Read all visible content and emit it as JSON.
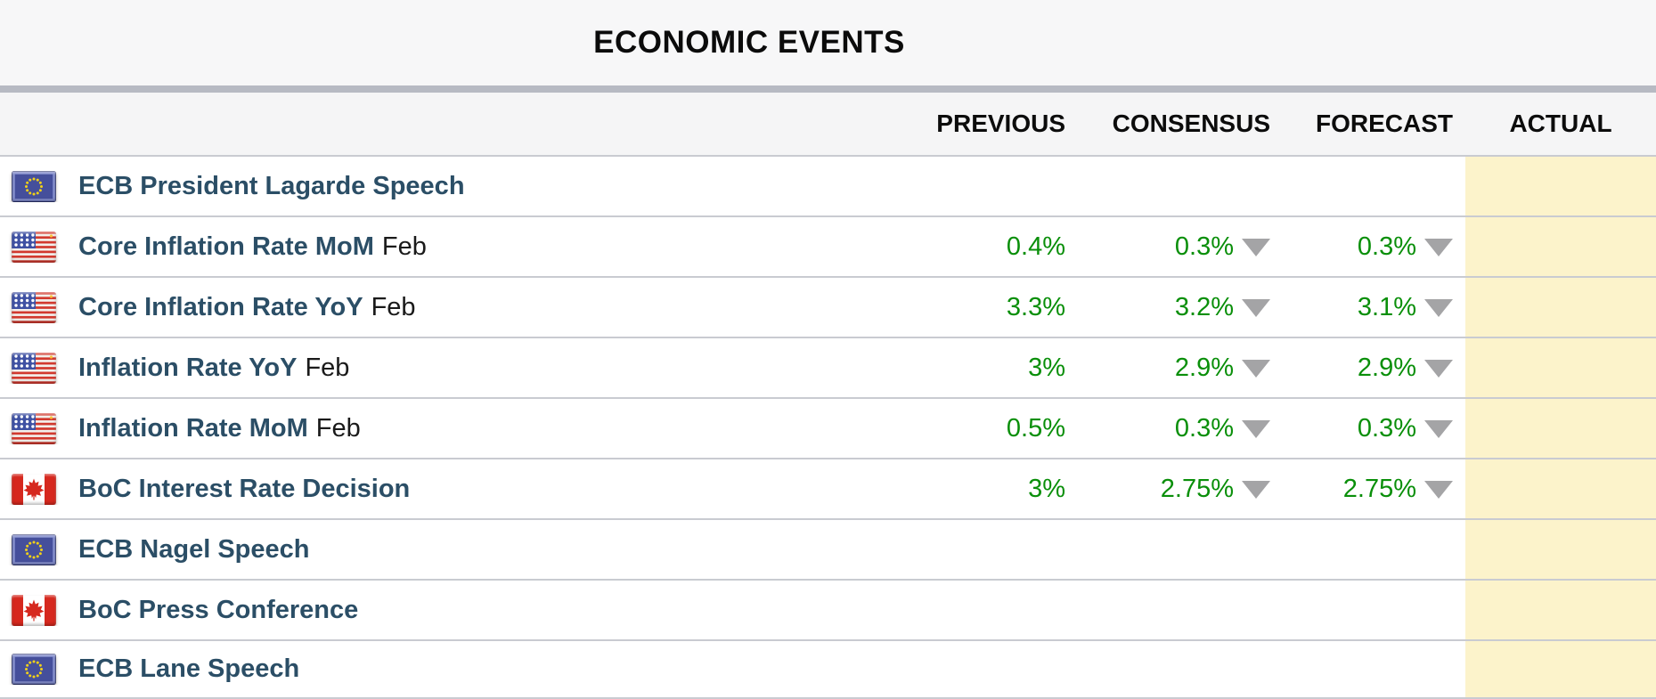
{
  "title": "ECONOMIC EVENTS",
  "columns": [
    "PREVIOUS",
    "CONSENSUS",
    "FORECAST",
    "ACTUAL"
  ],
  "colors": {
    "value_green": "#0a8f0a",
    "link_navy": "#2b4e66",
    "actual_column_yellow": "#fcf3cb",
    "divider_gray": "#b7bac3",
    "row_border_gray": "#c9cbd1"
  },
  "rows": [
    {
      "flag": "eu",
      "event": "ECB President Lagarde Speech",
      "suffix": "",
      "previous": "",
      "consensus": "",
      "consensus_trend": "",
      "forecast": "",
      "forecast_trend": "",
      "actual": ""
    },
    {
      "flag": "us",
      "event": "Core Inflation Rate MoM",
      "suffix": "Feb",
      "previous": "0.4%",
      "consensus": "0.3%",
      "consensus_trend": "down",
      "forecast": "0.3%",
      "forecast_trend": "down",
      "actual": ""
    },
    {
      "flag": "us",
      "event": "Core Inflation Rate YoY",
      "suffix": "Feb",
      "previous": "3.3%",
      "consensus": "3.2%",
      "consensus_trend": "down",
      "forecast": "3.1%",
      "forecast_trend": "down",
      "actual": ""
    },
    {
      "flag": "us",
      "event": "Inflation Rate YoY",
      "suffix": "Feb",
      "previous": "3%",
      "consensus": "2.9%",
      "consensus_trend": "down",
      "forecast": "2.9%",
      "forecast_trend": "down",
      "actual": ""
    },
    {
      "flag": "us",
      "event": "Inflation Rate MoM",
      "suffix": "Feb",
      "previous": "0.5%",
      "consensus": "0.3%",
      "consensus_trend": "down",
      "forecast": "0.3%",
      "forecast_trend": "down",
      "actual": ""
    },
    {
      "flag": "ca",
      "event": "BoC Interest Rate Decision",
      "suffix": "",
      "previous": "3%",
      "consensus": "2.75%",
      "consensus_trend": "down",
      "forecast": "2.75%",
      "forecast_trend": "down",
      "actual": ""
    },
    {
      "flag": "eu",
      "event": "ECB Nagel Speech",
      "suffix": "",
      "previous": "",
      "consensus": "",
      "consensus_trend": "",
      "forecast": "",
      "forecast_trend": "",
      "actual": ""
    },
    {
      "flag": "ca",
      "event": "BoC Press Conference",
      "suffix": "",
      "previous": "",
      "consensus": "",
      "consensus_trend": "",
      "forecast": "",
      "forecast_trend": "",
      "actual": ""
    },
    {
      "flag": "eu",
      "event": "ECB Lane Speech",
      "suffix": "",
      "previous": "",
      "consensus": "",
      "consensus_trend": "",
      "forecast": "",
      "forecast_trend": "",
      "actual": ""
    }
  ]
}
